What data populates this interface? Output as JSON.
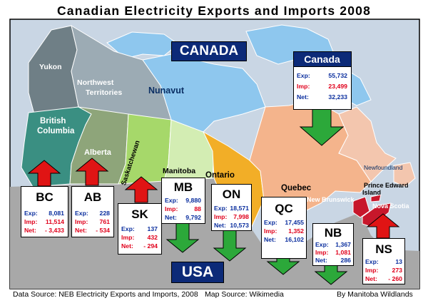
{
  "title": "Canadian Electricity Exports and Imports 2008",
  "banner_canada": "CANADA",
  "banner_usa": "USA",
  "regions": {
    "yukon": "Yukon",
    "nwt_line1": "Northwest",
    "nwt_line2": "Territories",
    "nunavut": "Nunavut",
    "bc_line1": "British",
    "bc_line2": "Columbia",
    "alberta": "Alberta",
    "saskatchewan": "Saskatchewan",
    "manitoba": "Manitoba",
    "ontario": "Ontario",
    "quebec": "Quebec",
    "newfoundland": "Newfoundland",
    "new_brunswick": "New Brunswick",
    "pei_line1": "Prince Edward",
    "pei_line2": "Island",
    "nova_scotia": "Nova Scotia"
  },
  "labels": {
    "exp": "Exp:",
    "imp": "Imp:",
    "net": "Net:"
  },
  "canada_box": {
    "name": "Canada",
    "exp": "55,732",
    "imp": "23,499",
    "net": "32,233"
  },
  "provinces": {
    "bc": {
      "abbr": "BC",
      "exp": "8,081",
      "imp": "11,514",
      "net": "- 3,433",
      "arrow": "up"
    },
    "ab": {
      "abbr": "AB",
      "exp": "228",
      "imp": "761",
      "net": "- 534",
      "arrow": "up"
    },
    "sk": {
      "abbr": "SK",
      "exp": "137",
      "imp": "432",
      "net": "- 294",
      "arrow": "up"
    },
    "mb": {
      "abbr": "MB",
      "exp": "9,880",
      "imp": "88",
      "net": "9,792",
      "arrow": "down"
    },
    "on": {
      "abbr": "ON",
      "exp": "18,571",
      "imp": "7,998",
      "net": "10,573",
      "arrow": "down"
    },
    "qc": {
      "abbr": "QC",
      "exp": "17,455",
      "imp": "1,352",
      "net": "16,102",
      "arrow": "down"
    },
    "nb": {
      "abbr": "NB",
      "exp": "1,367",
      "imp": "1,081",
      "net": "286",
      "arrow": "down"
    },
    "ns": {
      "abbr": "NS",
      "exp": "13",
      "imp": "273",
      "net": "- 260",
      "arrow": "up"
    }
  },
  "footer": {
    "data_source": "Data Source: NEB Electricity Exports and Imports, 2008",
    "map_source": "Map Source: Wikimedia",
    "credit": "By Manitoba Wildlands"
  },
  "colors": {
    "yukon": "#6f7f86",
    "nwt": "#9cabb4",
    "nunavut": "#8ec7ee",
    "bc": "#3a8f82",
    "alberta": "#8ea57a",
    "saskatchewan": "#a6d86a",
    "manitoba": "#d3edb3",
    "ontario": "#f2ae27",
    "quebec": "#f4b48c",
    "newfoundland": "#f3c6ae",
    "maritimes": "#c7172b",
    "ocean": "#c9d6e4",
    "usa": "#a8a8a8",
    "arrow_up": "#e01414",
    "arrow_down": "#2ca83a",
    "banner": "#0c2a78"
  }
}
